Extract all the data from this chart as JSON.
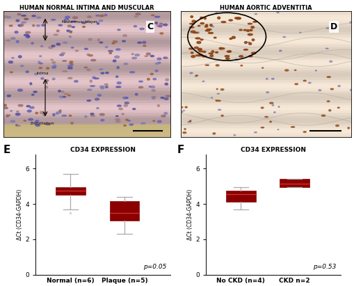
{
  "panel_E": {
    "title": "CD34 EXPRESSION",
    "ylabel": "ΔCt (CD34-GAPDH)",
    "groups": [
      "Normal (n=6)",
      "Plaque (n=5)"
    ],
    "box_color": "#8B0000",
    "box_data": {
      "Normal (n=6)": {
        "median": 4.75,
        "q1": 4.5,
        "q3": 4.95,
        "whislo": 3.7,
        "whishi": 5.7,
        "fliers": [
          3.5
        ]
      },
      "Plaque (n=5)": {
        "median": 3.5,
        "q1": 3.05,
        "q3": 4.15,
        "whislo": 2.3,
        "whishi": 4.4,
        "fliers": []
      }
    },
    "pvalue": "p=0.05",
    "ylim": [
      0,
      6.8
    ],
    "yticks": [
      0,
      2,
      4,
      6
    ]
  },
  "panel_F": {
    "title": "CD34 EXPRESSION",
    "ylabel": "ΔCt (CD34-GAPDH)",
    "groups": [
      "No CKD (n=4)",
      "CKD n=2"
    ],
    "box_color": "#8B0000",
    "box_data": {
      "No CKD (n=4)": {
        "median": 4.55,
        "q1": 4.1,
        "q3": 4.75,
        "whislo": 3.7,
        "whishi": 4.95,
        "fliers": []
      },
      "CKD n=2": {
        "median": 5.15,
        "q1": 4.95,
        "q3": 5.4,
        "whislo": 4.95,
        "whishi": 5.4,
        "fliers": []
      }
    },
    "pvalue": "p=0.53",
    "ylim": [
      0,
      6.8
    ],
    "yticks": [
      0,
      2,
      4,
      6
    ]
  },
  "panel_C": {
    "title": "HUMAN NORMAL INTIMA AND MUSCULAR",
    "label": "C"
  },
  "panel_D": {
    "title": "HUMAN AORTIC ADVENTITIA",
    "label": "D"
  },
  "label_E": "E",
  "label_F": "F",
  "background_color": "#ffffff",
  "img_bg_C": "#d4c4bc",
  "img_bg_D": "#e8e0d4"
}
